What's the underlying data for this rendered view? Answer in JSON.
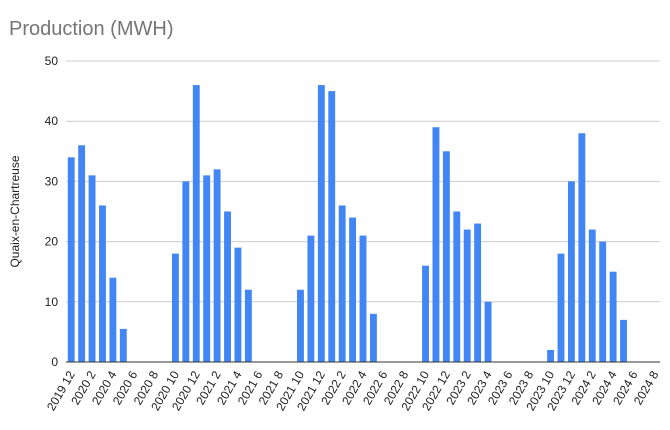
{
  "chart_data": {
    "type": "bar",
    "title": "Production (MWH)",
    "ylabel": "Quaix-en-Chartreuse",
    "xlabel": "",
    "ylim": [
      0,
      50
    ],
    "yticks": [
      0,
      10,
      20,
      30,
      40,
      50
    ],
    "grid": true,
    "color": "#4285f4",
    "categories": [
      "2019 12",
      "2020 1",
      "2020 2",
      "2020 3",
      "2020 4",
      "2020 5",
      "2020 6",
      "2020 7",
      "2020 8",
      "2020 9",
      "2020 10",
      "2020 11",
      "2020 12",
      "2021 1",
      "2021 2",
      "2021 3",
      "2021 4",
      "2021 5",
      "2021 6",
      "2021 7",
      "2021 8",
      "2021 9",
      "2021 10",
      "2021 11",
      "2021 12",
      "2022 1",
      "2022 2",
      "2022 3",
      "2022 4",
      "2022 5",
      "2022 6",
      "2022 7",
      "2022 8",
      "2022 9",
      "2022 10",
      "2022 11",
      "2022 12",
      "2023 1",
      "2023 2",
      "2023 3",
      "2023 4",
      "2023 5",
      "2023 6",
      "2023 7",
      "2023 8",
      "2023 9",
      "2023 10",
      "2023 11",
      "2023 12",
      "2024 1",
      "2024 2",
      "2024 3",
      "2024 4",
      "2024 5",
      "2024 6",
      "2024 7",
      "2024 8"
    ],
    "values": [
      34,
      36,
      31,
      26,
      14,
      5.5,
      0,
      0,
      0,
      0,
      18,
      30,
      46,
      31,
      32,
      25,
      19,
      12,
      0,
      0,
      0,
      0,
      12,
      21,
      46,
      45,
      26,
      24,
      21,
      8,
      0,
      0,
      0,
      0,
      16,
      39,
      35,
      25,
      22,
      23,
      10,
      0,
      0,
      0,
      0,
      0,
      2,
      18,
      30,
      38,
      22,
      20,
      15,
      7,
      0,
      0,
      0
    ],
    "xtick_labels": [
      "2019 12",
      "2020 2",
      "2020 4",
      "2020 6",
      "2020 8",
      "2020 10",
      "2020 12",
      "2021 2",
      "2021 4",
      "2021 6",
      "2021 8",
      "2021 10",
      "2021 12",
      "2022 2",
      "2022 4",
      "2022 6",
      "2022 8",
      "2022 10",
      "2022 12",
      "2023 2",
      "2023 4",
      "2023 6",
      "2023 8",
      "2023 10",
      "2023 12",
      "2024 2",
      "2024 4",
      "2024 6",
      "2024 8"
    ]
  }
}
